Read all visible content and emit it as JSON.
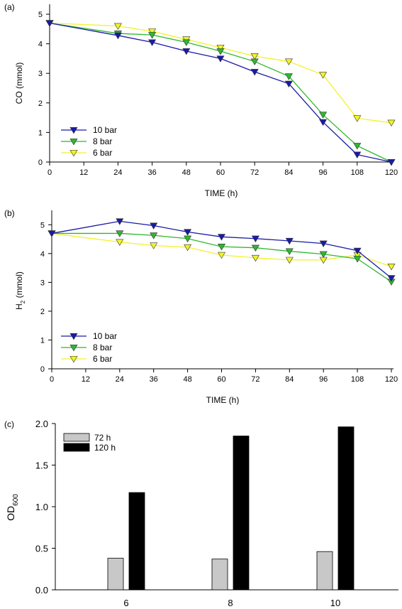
{
  "chart_data": [
    {
      "type": "line",
      "panel_label": "(a)",
      "xlabel": "TIME (h)",
      "ylabel": "CO (mmol)",
      "xlim": [
        0,
        120
      ],
      "ylim": [
        0,
        5
      ],
      "xticks": [
        0,
        12,
        24,
        36,
        48,
        60,
        72,
        84,
        96,
        108,
        120
      ],
      "yticks": [
        0,
        1,
        2,
        3,
        4,
        5
      ],
      "legend_position": "bottom-left",
      "series": [
        {
          "name": "10 bar",
          "color": "#1a1aa8",
          "x": [
            0,
            24,
            36,
            48,
            60,
            72,
            84,
            96,
            108,
            120
          ],
          "values": [
            4.7,
            4.28,
            4.05,
            3.75,
            3.5,
            3.05,
            2.65,
            1.35,
            0.25,
            0.0
          ]
        },
        {
          "name": "8 bar",
          "color": "#2eb82e",
          "x": [
            0,
            24,
            36,
            48,
            60,
            72,
            84,
            96,
            108,
            120
          ],
          "values": [
            4.7,
            4.35,
            4.3,
            4.05,
            3.75,
            3.4,
            2.9,
            1.6,
            0.55,
            0.0
          ]
        },
        {
          "name": "6 bar",
          "color": "#f2f22a",
          "x": [
            0,
            24,
            36,
            48,
            60,
            72,
            84,
            96,
            108,
            120
          ],
          "values": [
            4.7,
            4.6,
            4.42,
            4.15,
            3.87,
            3.58,
            3.4,
            2.95,
            1.48,
            1.33
          ]
        }
      ]
    },
    {
      "type": "line",
      "panel_label": "(b)",
      "xlabel": "TIME (h)",
      "ylabel_main": "H",
      "ylabel_sub": "2",
      "ylabel_rest": " (mmol)",
      "xlim": [
        0,
        120
      ],
      "ylim": [
        0,
        5.5
      ],
      "xticks": [
        0,
        12,
        24,
        36,
        48,
        60,
        72,
        84,
        96,
        108,
        120
      ],
      "yticks": [
        0,
        1,
        2,
        3,
        4,
        5
      ],
      "legend_position": "bottom-left",
      "series": [
        {
          "name": "10 bar",
          "color": "#1a1aa8",
          "x": [
            0,
            24,
            36,
            48,
            60,
            72,
            84,
            96,
            108,
            120
          ],
          "values": [
            4.7,
            5.12,
            4.97,
            4.75,
            4.58,
            4.52,
            4.44,
            4.35,
            4.1,
            3.15
          ]
        },
        {
          "name": "8 bar",
          "color": "#2eb82e",
          "x": [
            0,
            24,
            36,
            48,
            60,
            72,
            84,
            96,
            108,
            120
          ],
          "values": [
            4.7,
            4.7,
            4.63,
            4.52,
            4.24,
            4.2,
            4.08,
            3.98,
            3.82,
            3.02
          ]
        },
        {
          "name": "6 bar",
          "color": "#f2f22a",
          "x": [
            0,
            24,
            36,
            48,
            60,
            72,
            84,
            96,
            108,
            120
          ],
          "values": [
            4.7,
            4.4,
            4.28,
            4.22,
            3.95,
            3.85,
            3.78,
            3.78,
            3.95,
            3.55
          ]
        }
      ]
    },
    {
      "type": "bar",
      "panel_label": "(c)",
      "ylabel_main": "OD",
      "ylabel_sub": "600",
      "categories": [
        "6",
        "8",
        "10"
      ],
      "ylim": [
        0,
        2.0
      ],
      "yticks": [
        "0.0",
        "0.5",
        "1.0",
        "1.5",
        "2.0"
      ],
      "legend_position": "top-left",
      "series": [
        {
          "name": "72 h",
          "color": "#c8c8c8",
          "values": [
            0.38,
            0.37,
            0.46
          ]
        },
        {
          "name": "120 h",
          "color": "#000000",
          "values": [
            1.17,
            1.85,
            1.96
          ]
        }
      ]
    }
  ]
}
